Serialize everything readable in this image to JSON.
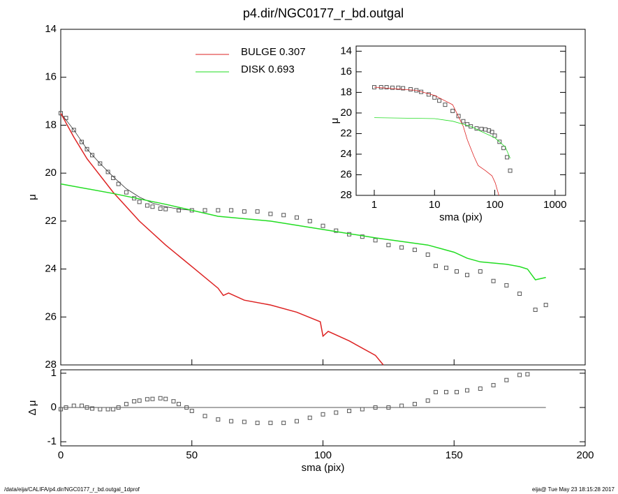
{
  "chart_data": [
    {
      "type": "line",
      "title": "p4.dir/NGC0177_r_bd.outgal",
      "ylabel": "μ",
      "xlim": [
        0,
        200
      ],
      "ylim": [
        14,
        28
      ],
      "yticks": [
        14,
        16,
        18,
        20,
        22,
        24,
        26,
        28
      ],
      "y_inverted": true,
      "series": [
        {
          "style": "points",
          "color": "#555555",
          "x": [
            0,
            2,
            5,
            8,
            10,
            12,
            15,
            18,
            20,
            22,
            25,
            28,
            30,
            33,
            35,
            38,
            40,
            45,
            50,
            55,
            60,
            65,
            70,
            75,
            80,
            85,
            90,
            95,
            100,
            105,
            110,
            115,
            120,
            125,
            130,
            135,
            140,
            143,
            147,
            151,
            155,
            160,
            165,
            170,
            175,
            181,
            185
          ],
          "values": [
            17.5,
            17.7,
            18.2,
            18.7,
            19.0,
            19.25,
            19.6,
            19.95,
            20.2,
            20.45,
            20.8,
            21.05,
            21.2,
            21.35,
            21.4,
            21.48,
            21.5,
            21.55,
            21.55,
            21.55,
            21.55,
            21.55,
            21.6,
            21.6,
            21.7,
            21.75,
            21.85,
            22.0,
            22.2,
            22.4,
            22.55,
            22.65,
            22.8,
            23.0,
            23.1,
            23.2,
            23.4,
            23.87,
            23.95,
            24.1,
            24.25,
            24.1,
            24.5,
            24.68,
            25.03,
            25.7,
            25.5
          ]
        },
        {
          "style": "line",
          "color": "#333333",
          "width": 0.8,
          "x": [
            0,
            5,
            10,
            15,
            20,
            25,
            30,
            35,
            40,
            45,
            50
          ],
          "values": [
            17.5,
            18.2,
            19.0,
            19.6,
            20.15,
            20.65,
            21.0,
            21.25,
            21.4,
            21.5,
            21.55
          ]
        },
        {
          "name": "BULGE  0.307",
          "style": "line",
          "color": "#dd2222",
          "width": 1.5,
          "x": [
            0,
            5,
            10,
            20,
            30,
            40,
            50,
            60,
            62,
            64,
            70,
            80,
            90,
            99,
            100,
            102,
            110,
            120,
            123
          ],
          "values": [
            17.5,
            18.5,
            19.4,
            20.8,
            22.0,
            23.0,
            23.9,
            24.8,
            25.1,
            25.0,
            25.3,
            25.5,
            25.8,
            26.2,
            26.8,
            26.6,
            27.0,
            27.6,
            28.0
          ]
        },
        {
          "name": "DISK  0.693",
          "style": "line",
          "color": "#22dd22",
          "width": 1.5,
          "x": [
            0,
            20,
            40,
            60,
            80,
            100,
            120,
            140,
            150,
            155,
            160,
            170,
            175,
            178,
            181,
            185
          ],
          "values": [
            20.45,
            20.85,
            21.3,
            21.8,
            22.0,
            22.35,
            22.7,
            23.0,
            23.3,
            23.55,
            23.7,
            23.8,
            23.9,
            24.0,
            24.45,
            24.35
          ]
        }
      ]
    },
    {
      "type": "scatter",
      "ylabel": "Δ μ",
      "xlabel": "sma (pix)",
      "xlim": [
        0,
        200
      ],
      "xticks": [
        0,
        50,
        100,
        150,
        200
      ],
      "ylim": [
        -1.12,
        1.1
      ],
      "yticks": [
        1,
        0,
        -1
      ],
      "zero_line": {
        "y": 0,
        "x": [
          0,
          185
        ]
      },
      "series": [
        {
          "style": "points",
          "color": "#555555",
          "x": [
            0,
            2,
            5,
            8,
            10,
            12,
            15,
            18,
            20,
            22,
            25,
            28,
            30,
            33,
            35,
            38,
            40,
            43,
            45,
            48,
            50,
            55,
            60,
            65,
            70,
            75,
            80,
            85,
            90,
            95,
            100,
            105,
            110,
            115,
            120,
            125,
            130,
            135,
            140,
            143,
            147,
            151,
            155,
            160,
            165,
            170,
            175,
            178
          ],
          "values": [
            -0.05,
            0.0,
            0.05,
            0.05,
            0.0,
            -0.03,
            -0.05,
            -0.05,
            -0.05,
            0.0,
            0.1,
            0.18,
            0.2,
            0.24,
            0.25,
            0.27,
            0.25,
            0.18,
            0.1,
            0.0,
            -0.1,
            -0.25,
            -0.35,
            -0.4,
            -0.42,
            -0.45,
            -0.45,
            -0.45,
            -0.4,
            -0.3,
            -0.2,
            -0.15,
            -0.1,
            -0.05,
            0.0,
            0.0,
            0.05,
            0.1,
            0.2,
            0.45,
            0.45,
            0.45,
            0.5,
            0.55,
            0.65,
            0.8,
            0.95,
            0.97
          ]
        }
      ]
    },
    {
      "type": "line",
      "xscale": "log",
      "xlabel": "sma (pix)",
      "ylabel": "μ",
      "y_inverted": true,
      "xlim": [
        0.5,
        1500
      ],
      "xticks": [
        1,
        10,
        100,
        1000
      ],
      "ylim": [
        13.5,
        28
      ],
      "yticks": [
        14,
        16,
        18,
        20,
        22,
        24,
        26,
        28
      ],
      "series": [
        {
          "style": "points",
          "color": "#555555",
          "x": [
            1,
            1.3,
            1.6,
            2,
            2.5,
            3,
            4,
            5,
            6,
            8,
            10,
            12,
            15,
            20,
            25,
            30,
            35,
            40,
            50,
            60,
            70,
            80,
            90,
            100,
            120,
            140,
            160,
            180
          ],
          "values": [
            17.5,
            17.5,
            17.5,
            17.55,
            17.55,
            17.6,
            17.7,
            17.8,
            17.95,
            18.2,
            18.5,
            18.8,
            19.2,
            19.8,
            20.3,
            20.8,
            21.1,
            21.3,
            21.5,
            21.55,
            21.6,
            21.7,
            21.85,
            22.2,
            22.8,
            23.4,
            24.3,
            25.6
          ]
        },
        {
          "style": "line",
          "color": "#dd2222",
          "width": 0.8,
          "x": [
            1,
            5,
            10,
            20,
            30,
            35,
            45,
            53,
            70,
            90,
            102,
            117
          ],
          "values": [
            17.5,
            17.8,
            18.3,
            19.2,
            21.3,
            22.6,
            24.2,
            25.1,
            25.6,
            26.1,
            26.8,
            28.0
          ]
        },
        {
          "style": "line",
          "color": "#22dd22",
          "width": 0.8,
          "x": [
            1,
            10,
            20,
            40,
            60,
            100,
            150,
            180
          ],
          "values": [
            20.45,
            20.55,
            20.8,
            21.3,
            21.8,
            22.4,
            23.3,
            24.4
          ]
        }
      ]
    }
  ],
  "footer": {
    "left": "/data/eija/CALIFA/p4.dir/NGC0177_r_bd.outgal_1dprof",
    "right": "eija@  Tue May 23 18:15:28 2017"
  }
}
